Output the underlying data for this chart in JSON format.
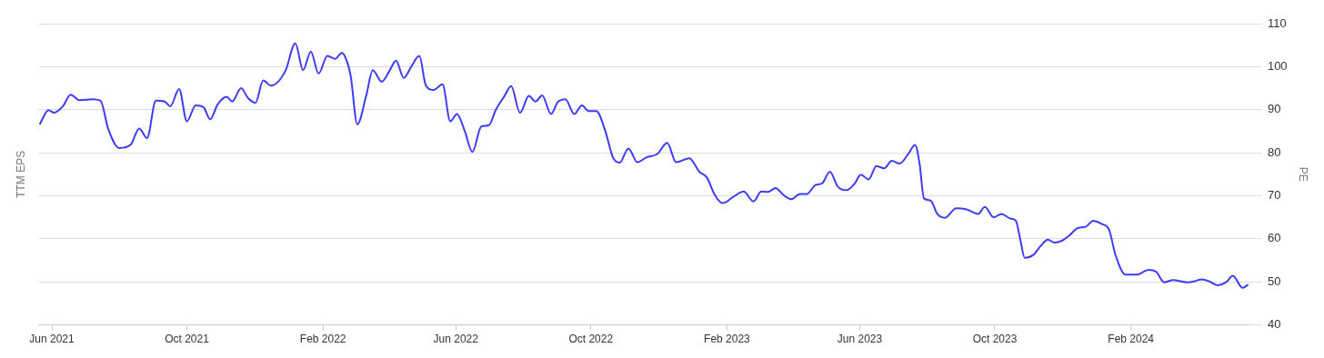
{
  "chart_data": {
    "type": "line",
    "ylabel": "TTM EPS",
    "y2label": "PE",
    "grid": "y",
    "xlim": [
      "2021-05-20",
      "2024-05-18"
    ],
    "xticks": [
      {
        "value": "2021-06-01",
        "label": "Jun 2021"
      },
      {
        "value": "2021-10-01",
        "label": "Oct 2021"
      },
      {
        "value": "2022-02-01",
        "label": "Feb 2022"
      },
      {
        "value": "2022-06-01",
        "label": "Jun 2022"
      },
      {
        "value": "2022-10-01",
        "label": "Oct 2022"
      },
      {
        "value": "2023-02-01",
        "label": "Feb 2023"
      },
      {
        "value": "2023-06-01",
        "label": "Jun 2023"
      },
      {
        "value": "2023-10-01",
        "label": "Oct 2023"
      },
      {
        "value": "2024-02-01",
        "label": "Feb 2024"
      }
    ],
    "y2lim": [
      40,
      110
    ],
    "y2ticks": [
      40,
      50,
      60,
      70,
      80,
      90,
      100,
      110
    ],
    "series": [
      {
        "axis": "y2",
        "color": "#3d3df5",
        "x": [
          "2021-05-21",
          "2021-05-29",
          "2021-06-03",
          "2021-06-11",
          "2021-06-18",
          "2021-06-26",
          "2021-07-08",
          "2021-07-15",
          "2021-07-22",
          "2021-08-01",
          "2021-08-11",
          "2021-08-19",
          "2021-08-26",
          "2021-09-03",
          "2021-09-11",
          "2021-09-16",
          "2021-09-24",
          "2021-10-01",
          "2021-10-09",
          "2021-10-16",
          "2021-10-22",
          "2021-10-29",
          "2021-11-06",
          "2021-11-11",
          "2021-11-19",
          "2021-11-25",
          "2021-12-02",
          "2021-12-09",
          "2021-12-16",
          "2021-12-29",
          "2022-01-07",
          "2022-01-14",
          "2022-01-21",
          "2022-01-28",
          "2022-02-05",
          "2022-02-12",
          "2022-02-18",
          "2022-02-21",
          "2022-02-26",
          "2022-03-04",
          "2022-03-12",
          "2022-03-18",
          "2022-03-26",
          "2022-04-02",
          "2022-04-08",
          "2022-04-15",
          "2022-04-22",
          "2022-04-29",
          "2022-05-05",
          "2022-05-12",
          "2022-05-20",
          "2022-05-27",
          "2022-06-02",
          "2022-06-09",
          "2022-06-16",
          "2022-06-24",
          "2022-07-01",
          "2022-07-07",
          "2022-07-15",
          "2022-07-21",
          "2022-07-29",
          "2022-08-06",
          "2022-08-12",
          "2022-08-18",
          "2022-08-26",
          "2022-09-01",
          "2022-09-08",
          "2022-09-16",
          "2022-09-23",
          "2022-09-29",
          "2022-10-06",
          "2022-10-14",
          "2022-10-21",
          "2022-10-27",
          "2022-11-04",
          "2022-11-12",
          "2022-11-20",
          "2022-11-30",
          "2022-12-09",
          "2022-12-17",
          "2022-12-29",
          "2023-01-07",
          "2023-01-14",
          "2023-01-21",
          "2023-01-28",
          "2023-02-07",
          "2023-02-16",
          "2023-02-25",
          "2023-03-04",
          "2023-03-10",
          "2023-03-17",
          "2023-03-24",
          "2023-03-31",
          "2023-04-08",
          "2023-04-14",
          "2023-04-22",
          "2023-04-28",
          "2023-05-05",
          "2023-05-12",
          "2023-05-20",
          "2023-05-27",
          "2023-06-02",
          "2023-06-09",
          "2023-06-16",
          "2023-06-23",
          "2023-06-30",
          "2023-07-07",
          "2023-07-15",
          "2023-07-21",
          "2023-07-25",
          "2023-07-29",
          "2023-08-04",
          "2023-08-10",
          "2023-08-17",
          "2023-08-27",
          "2023-09-05",
          "2023-09-16",
          "2023-09-22",
          "2023-09-30",
          "2023-10-07",
          "2023-10-15",
          "2023-10-20",
          "2023-10-24",
          "2023-10-28",
          "2023-11-05",
          "2023-11-11",
          "2023-11-18",
          "2023-11-24",
          "2023-12-01",
          "2023-12-07",
          "2023-12-15",
          "2023-12-22",
          "2023-12-29",
          "2024-01-06",
          "2024-01-12",
          "2024-01-18",
          "2024-01-27",
          "2024-02-07",
          "2024-02-12",
          "2024-02-17",
          "2024-02-24",
          "2024-03-02",
          "2024-03-10",
          "2024-03-23",
          "2024-03-29",
          "2024-04-05",
          "2024-04-12",
          "2024-04-19",
          "2024-04-27",
          "2024-05-03",
          "2024-05-12",
          "2024-05-17"
        ],
        "values": [
          86.6,
          89.9,
          89.3,
          90.8,
          93.5,
          92.2,
          92.4,
          92.1,
          85.5,
          81.1,
          81.8,
          85.6,
          83.4,
          92.1,
          91.9,
          90.8,
          94.8,
          87.3,
          91.0,
          90.6,
          87.8,
          91.3,
          93.0,
          91.9,
          95.0,
          92.8,
          91.6,
          96.8,
          95.6,
          99.0,
          105.4,
          99.2,
          103.5,
          98.4,
          102.5,
          101.8,
          103.2,
          102.3,
          97.9,
          86.6,
          93.2,
          99.2,
          96.5,
          99.0,
          101.4,
          97.4,
          100.1,
          102.5,
          95.6,
          94.6,
          95.9,
          87.3,
          89.0,
          85.1,
          80.2,
          86.1,
          86.4,
          89.9,
          93.2,
          95.5,
          89.3,
          93.2,
          91.9,
          93.3,
          89.0,
          91.7,
          92.4,
          89.0,
          91.0,
          89.7,
          89.7,
          85.1,
          78.9,
          77.7,
          81.0,
          77.8,
          78.9,
          79.7,
          82.3,
          77.8,
          78.7,
          75.6,
          74.2,
          70.2,
          68.3,
          69.8,
          71.0,
          68.7,
          71.0,
          70.9,
          71.8,
          70.2,
          69.2,
          70.4,
          70.4,
          72.5,
          72.9,
          75.6,
          72.2,
          71.3,
          72.7,
          74.9,
          73.8,
          76.9,
          76.4,
          78.1,
          77.5,
          79.8,
          81.8,
          77.5,
          69.4,
          68.9,
          65.8,
          64.9,
          67.1,
          66.9,
          65.8,
          67.4,
          65.0,
          65.8,
          64.7,
          64.2,
          59.9,
          55.6,
          56.3,
          58.2,
          59.8,
          59.1,
          59.6,
          60.7,
          62.5,
          62.8,
          64.2,
          63.4,
          62.3,
          56.3,
          51.7,
          51.7,
          52.3,
          52.8,
          52.3,
          49.9,
          50.4,
          49.9,
          50.1,
          50.6,
          50.1,
          49.2,
          49.9,
          51.4,
          48.6,
          49.4
        ]
      }
    ]
  }
}
